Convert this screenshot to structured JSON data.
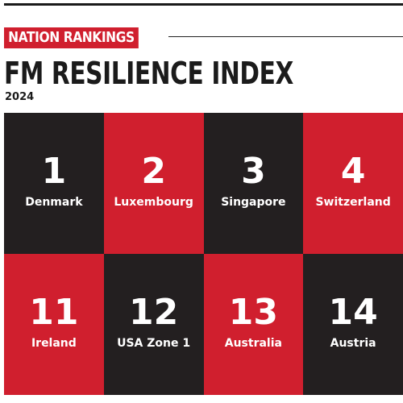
{
  "header": {
    "badge": "NATION RANKINGS",
    "title": "FM RESILIENCE INDEX",
    "year": "2024"
  },
  "colors": {
    "accent_red": "#d01f2e",
    "dark": "#231f20",
    "text_light": "#ffffff"
  },
  "rankings": [
    {
      "rank": "1",
      "country": "Denmark",
      "tone": "dark"
    },
    {
      "rank": "2",
      "country": "Luxembourg",
      "tone": "red"
    },
    {
      "rank": "3",
      "country": "Singapore",
      "tone": "dark"
    },
    {
      "rank": "4",
      "country": "Switzerland",
      "tone": "red"
    },
    {
      "rank": "11",
      "country": "Ireland",
      "tone": "red"
    },
    {
      "rank": "12",
      "country": "USA Zone 1",
      "tone": "dark"
    },
    {
      "rank": "13",
      "country": "Australia",
      "tone": "red"
    },
    {
      "rank": "14",
      "country": "Austria",
      "tone": "dark"
    }
  ]
}
